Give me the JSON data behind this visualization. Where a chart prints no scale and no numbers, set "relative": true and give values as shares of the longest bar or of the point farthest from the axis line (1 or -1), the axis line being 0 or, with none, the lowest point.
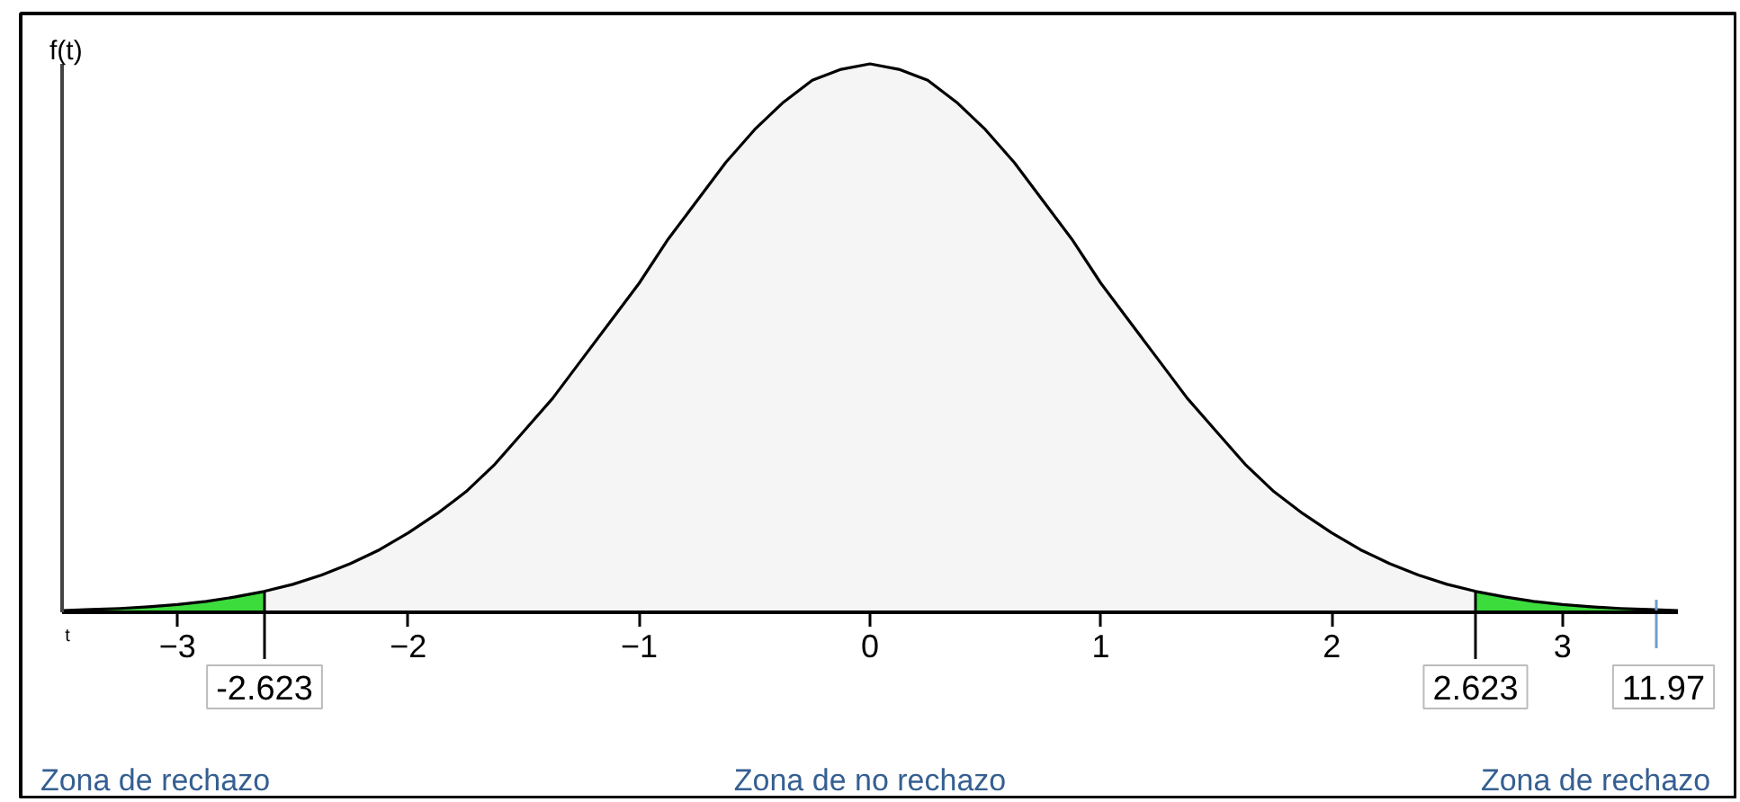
{
  "chart_data": {
    "type": "line",
    "relative": true,
    "xlabel": "t",
    "ylabel": "f(t)",
    "x": [
      -3.5,
      -3.375,
      -3.25,
      -3.125,
      -3,
      -2.875,
      -2.75,
      -2.625,
      -2.5,
      -2.375,
      -2.25,
      -2.125,
      -2,
      -1.875,
      -1.75,
      -1.625,
      -1.5,
      -1.375,
      -1.25,
      -1.125,
      -1,
      -0.875,
      -0.75,
      -0.625,
      -0.5,
      -0.375,
      -0.25,
      -0.125,
      0,
      0.125,
      0.25,
      0.375,
      0.5,
      0.625,
      0.75,
      0.875,
      1,
      1.125,
      1.25,
      1.375,
      1.5,
      1.625,
      1.75,
      1.875,
      2,
      2.125,
      2.25,
      2.375,
      2.5,
      2.625,
      2.75,
      2.875,
      3,
      3.125,
      3.25,
      3.375,
      3.5
    ],
    "series": [
      {
        "type": "area",
        "color": "#3ddc3d",
        "x": [
          -3.5,
          -3.375,
          -3.25,
          -3.125,
          -3,
          -2.875,
          -2.75,
          -2.623
        ],
        "values": [
          0.003,
          0.005,
          0.007,
          0.01,
          0.014,
          0.02,
          0.028,
          0.037
        ]
      },
      {
        "type": "area",
        "color": "#f5f5f5",
        "x": [
          -2.623,
          -2.5,
          -2.375,
          -2.25,
          -2.125,
          -2,
          -1.875,
          -1.75,
          -1.625,
          -1.5,
          -1.375,
          -1.25,
          -1.125,
          -1,
          -0.875,
          -0.75,
          -0.625,
          -0.5,
          -0.375,
          -0.25,
          -0.125,
          0,
          0.125,
          0.25,
          0.375,
          0.5,
          0.625,
          0.75,
          0.875,
          1,
          1.125,
          1.25,
          1.375,
          1.5,
          1.625,
          1.75,
          1.875,
          2,
          2.125,
          2.25,
          2.375,
          2.5,
          2.623
        ],
        "values": [
          0.037,
          0.051,
          0.068,
          0.089,
          0.114,
          0.145,
          0.18,
          0.22,
          0.27,
          0.33,
          0.39,
          0.46,
          0.53,
          0.6,
          0.68,
          0.75,
          0.82,
          0.88,
          0.93,
          0.97,
          0.99,
          1,
          0.99,
          0.97,
          0.93,
          0.88,
          0.82,
          0.75,
          0.68,
          0.6,
          0.53,
          0.46,
          0.39,
          0.33,
          0.27,
          0.22,
          0.18,
          0.145,
          0.114,
          0.089,
          0.068,
          0.051,
          0.037
        ]
      },
      {
        "type": "area",
        "color": "#3ddc3d",
        "x": [
          2.623,
          2.75,
          2.875,
          3,
          3.125,
          3.25,
          3.375,
          3.5
        ],
        "values": [
          0.037,
          0.028,
          0.02,
          0.014,
          0.01,
          0.007,
          0.005,
          0.003
        ]
      },
      {
        "color": "#000000",
        "values": [
          0.003,
          0.005,
          0.007,
          0.01,
          0.014,
          0.02,
          0.028,
          0.038,
          0.051,
          0.068,
          0.089,
          0.114,
          0.145,
          0.18,
          0.22,
          0.27,
          0.33,
          0.39,
          0.46,
          0.53,
          0.6,
          0.68,
          0.75,
          0.82,
          0.88,
          0.93,
          0.97,
          0.99,
          1,
          0.99,
          0.97,
          0.93,
          0.88,
          0.82,
          0.75,
          0.68,
          0.6,
          0.53,
          0.46,
          0.39,
          0.33,
          0.27,
          0.22,
          0.18,
          0.145,
          0.114,
          0.089,
          0.068,
          0.051,
          0.038,
          0.028,
          0.02,
          0.014,
          0.01,
          0.007,
          0.005,
          0.003
        ]
      }
    ],
    "xlim": [
      -3.5,
      3.5
    ],
    "xticks": [
      -3,
      -2,
      -1,
      0,
      1,
      2,
      3
    ],
    "ref_lines": [
      {
        "axis": "x",
        "value": -2.623,
        "label": "-2.623",
        "color": "#000000"
      },
      {
        "axis": "x",
        "value": 2.623,
        "label": "2.623",
        "color": "#000000"
      }
    ],
    "annotations": [
      "Zona de rechazo",
      "Zona de no rechazo",
      "Zona de rechazo",
      "11.97"
    ]
  }
}
